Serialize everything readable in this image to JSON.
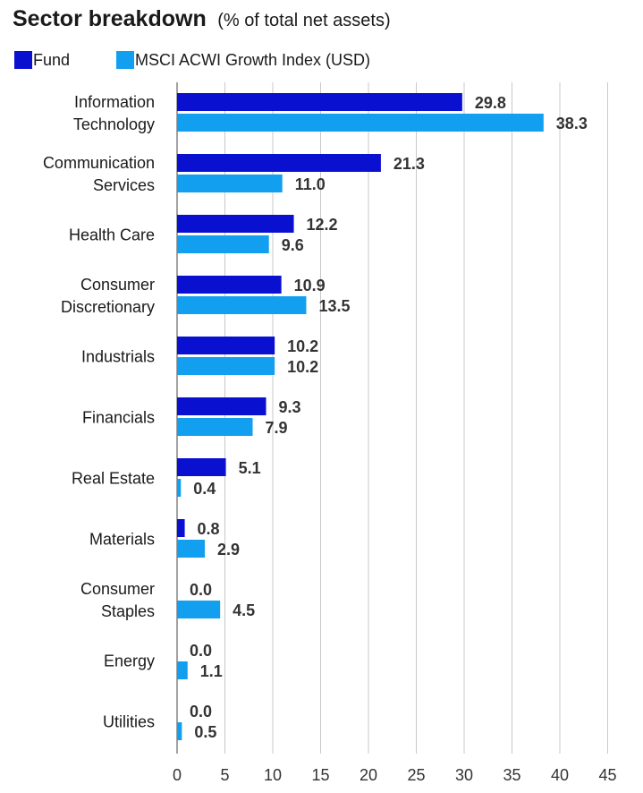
{
  "colors": {
    "fund": "#0a10d0",
    "index": "#129ff0",
    "grid": "#c8c8c8",
    "axis": "#444444"
  },
  "chart_data": {
    "type": "bar",
    "orientation": "horizontal",
    "title": "Sector breakdown",
    "subtitle": "(% of total net assets)",
    "legend_position": "top-left",
    "categories": [
      [
        "Information",
        "Technology"
      ],
      [
        "Communication",
        "Services"
      ],
      [
        "Health Care"
      ],
      [
        "Consumer",
        "Discretionary"
      ],
      [
        "Industrials"
      ],
      [
        "Financials"
      ],
      [
        "Real Estate"
      ],
      [
        "Materials"
      ],
      [
        "Consumer",
        "Staples"
      ],
      [
        "Energy"
      ],
      [
        "Utilities"
      ]
    ],
    "series": [
      {
        "name": "Fund",
        "values": [
          29.8,
          21.3,
          12.2,
          10.9,
          10.2,
          9.3,
          5.1,
          0.8,
          0.0,
          0.0,
          0.0
        ],
        "labels": [
          "29.8",
          "21.3",
          "12.2",
          "10.9",
          "10.2",
          "9.3",
          "5.1",
          "0.8",
          "0.0",
          "0.0",
          "0.0"
        ]
      },
      {
        "name": "MSCI ACWI Growth Index (USD)",
        "values": [
          38.3,
          11.0,
          9.6,
          13.5,
          10.2,
          7.9,
          0.4,
          2.9,
          4.5,
          1.1,
          0.5
        ],
        "labels": [
          "38.3",
          "11.0",
          "9.6",
          "13.5",
          "10.2",
          "7.9",
          "0.4",
          "2.9",
          "4.5",
          "1.1",
          "0.5"
        ]
      }
    ],
    "xlim": [
      0,
      45
    ],
    "xticks": [
      0,
      5,
      10,
      15,
      20,
      25,
      30,
      35,
      40,
      45
    ],
    "grid": true
  }
}
